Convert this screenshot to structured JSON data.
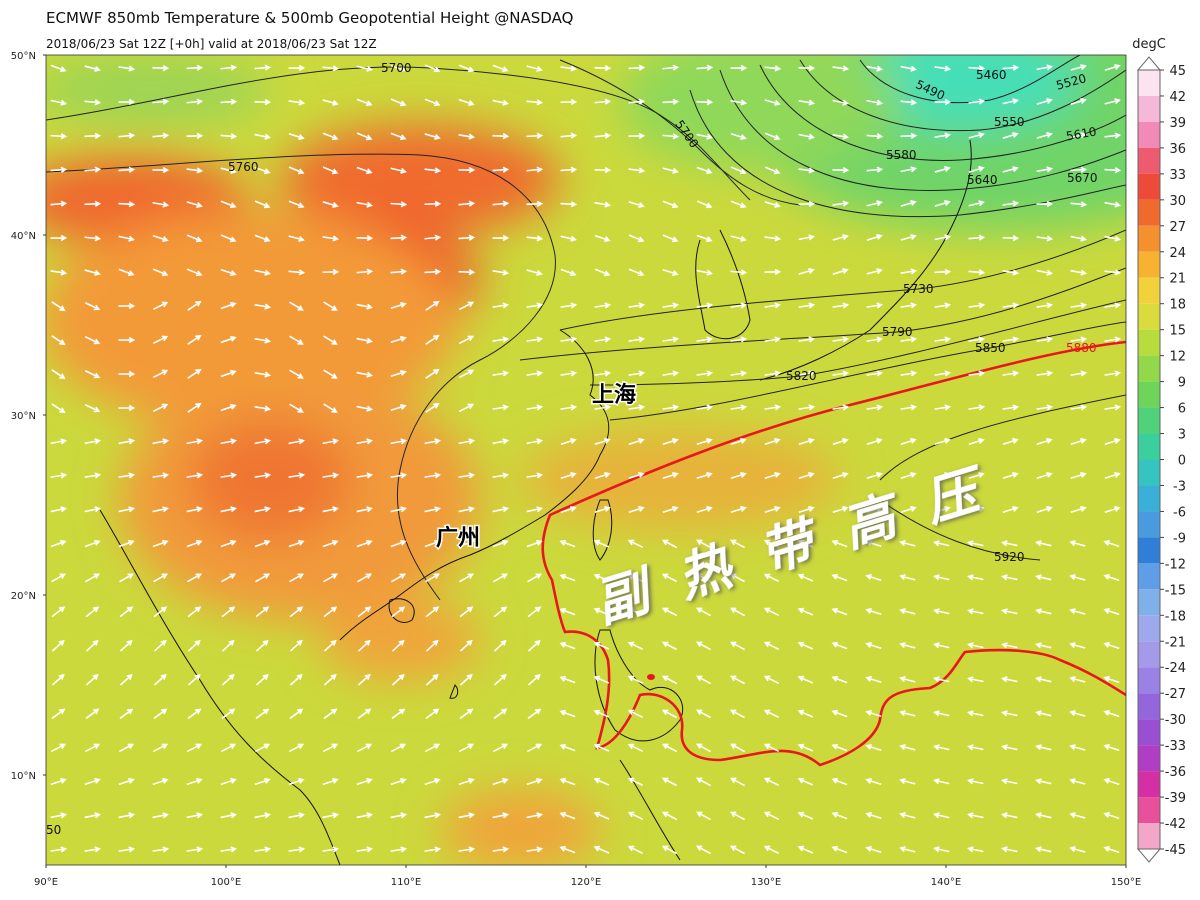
{
  "header": {
    "title": "ECMWF 850mb Temperature & 500mb Geopotential Height @NASDAQ",
    "subtitle": "2018/06/23 Sat 12Z [+0h] valid at 2018/06/23 Sat 12Z"
  },
  "map": {
    "lon_range": [
      90,
      150
    ],
    "lat_range": [
      5,
      50
    ],
    "lat_ticks": [
      {
        "value": 50,
        "label": "50°N"
      },
      {
        "value": 40,
        "label": "40°N"
      },
      {
        "value": 30,
        "label": "30°N"
      },
      {
        "value": 20,
        "label": "20°N"
      },
      {
        "value": 10,
        "label": "10°N"
      }
    ],
    "lon_ticks": [
      {
        "value": 90,
        "label": "90°E"
      },
      {
        "value": 100,
        "label": "100°E"
      },
      {
        "value": 110,
        "label": "110°E"
      },
      {
        "value": 120,
        "label": "120°E"
      },
      {
        "value": 130,
        "label": "130°E"
      },
      {
        "value": 140,
        "label": "140°E"
      },
      {
        "value": 150,
        "label": "150°E"
      }
    ],
    "contour_labels": [
      5700,
      5760,
      5700,
      5460,
      5490,
      5520,
      5550,
      5580,
      5610,
      5640,
      5670,
      5730,
      5790,
      5820,
      5850,
      5880,
      5920,
      50
    ],
    "place_labels": [
      "上海",
      "广州"
    ],
    "region_label": "副热带高压"
  },
  "colorbar": {
    "unit": "degC",
    "range": [
      -45,
      45
    ],
    "ticks": [
      45,
      42,
      39,
      36,
      33,
      30,
      27,
      24,
      21,
      18,
      15,
      12,
      9,
      6,
      3,
      0,
      -3,
      -6,
      -9,
      -12,
      -15,
      -18,
      -21,
      -24,
      -27,
      -30,
      -33,
      -36,
      -39,
      -42,
      -45
    ],
    "band_colors": [
      "#fbe3f0",
      "#f6b8d8",
      "#f28ab8",
      "#ee5a6e",
      "#ee4a3a",
      "#f06a2e",
      "#f4902e",
      "#f7b232",
      "#f2d23a",
      "#d9dc3c",
      "#b8dc3e",
      "#92d84a",
      "#6ed45a",
      "#4fd27a",
      "#3ccf9e",
      "#35c4c0",
      "#3ab0d8",
      "#4a9ae0",
      "#2f7fd8",
      "#5f9ee6",
      "#7fb0ea",
      "#9ea8ec",
      "#a59aea",
      "#9a82e4",
      "#9466dc",
      "#9a4ed2",
      "#b03ec4",
      "#d42fa4",
      "#e8509a",
      "#f4a6c8"
    ]
  }
}
